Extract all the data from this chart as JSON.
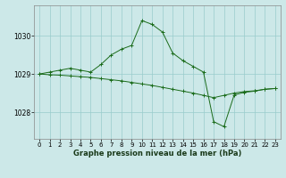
{
  "title": "Graphe pression niveau de la mer (hPa)",
  "background_color": "#cce8e8",
  "grid_color": "#99cccc",
  "line_color": "#1a6b1a",
  "xlim": [
    -0.5,
    23.5
  ],
  "ylim": [
    1027.3,
    1030.8
  ],
  "yticks": [
    1028,
    1029,
    1030
  ],
  "xticks": [
    0,
    1,
    2,
    3,
    4,
    5,
    6,
    7,
    8,
    9,
    10,
    11,
    12,
    13,
    14,
    15,
    16,
    17,
    18,
    19,
    20,
    21,
    22,
    23
  ],
  "series1_x": [
    0,
    1,
    2,
    3,
    4,
    5,
    6,
    7,
    8,
    9,
    10,
    11,
    12,
    13,
    14,
    15,
    16,
    17,
    18,
    19,
    20,
    21,
    22,
    23
  ],
  "series1_y": [
    1029.0,
    1029.05,
    1029.1,
    1029.15,
    1029.1,
    1029.05,
    1029.25,
    1029.5,
    1029.65,
    1029.75,
    1030.4,
    1030.3,
    1030.1,
    1029.55,
    1029.35,
    1029.2,
    1029.05,
    1027.75,
    1027.62,
    1028.45,
    1028.52,
    1028.55,
    1028.6,
    1028.62
  ],
  "series2_x": [
    0,
    1,
    2,
    3,
    4,
    5,
    6,
    7,
    8,
    9,
    10,
    11,
    12,
    13,
    14,
    15,
    16,
    17,
    18,
    19,
    20,
    21,
    22,
    23
  ],
  "series2_y": [
    1029.0,
    1028.98,
    1028.97,
    1028.95,
    1028.93,
    1028.91,
    1028.88,
    1028.85,
    1028.82,
    1028.78,
    1028.74,
    1028.7,
    1028.65,
    1028.6,
    1028.55,
    1028.5,
    1028.44,
    1028.38,
    1028.44,
    1028.5,
    1028.54,
    1028.56,
    1028.6,
    1028.62
  ],
  "xlabel_fontsize": 6.0,
  "ylabel_fontsize": 6.0,
  "tick_fontsize": 5.0
}
